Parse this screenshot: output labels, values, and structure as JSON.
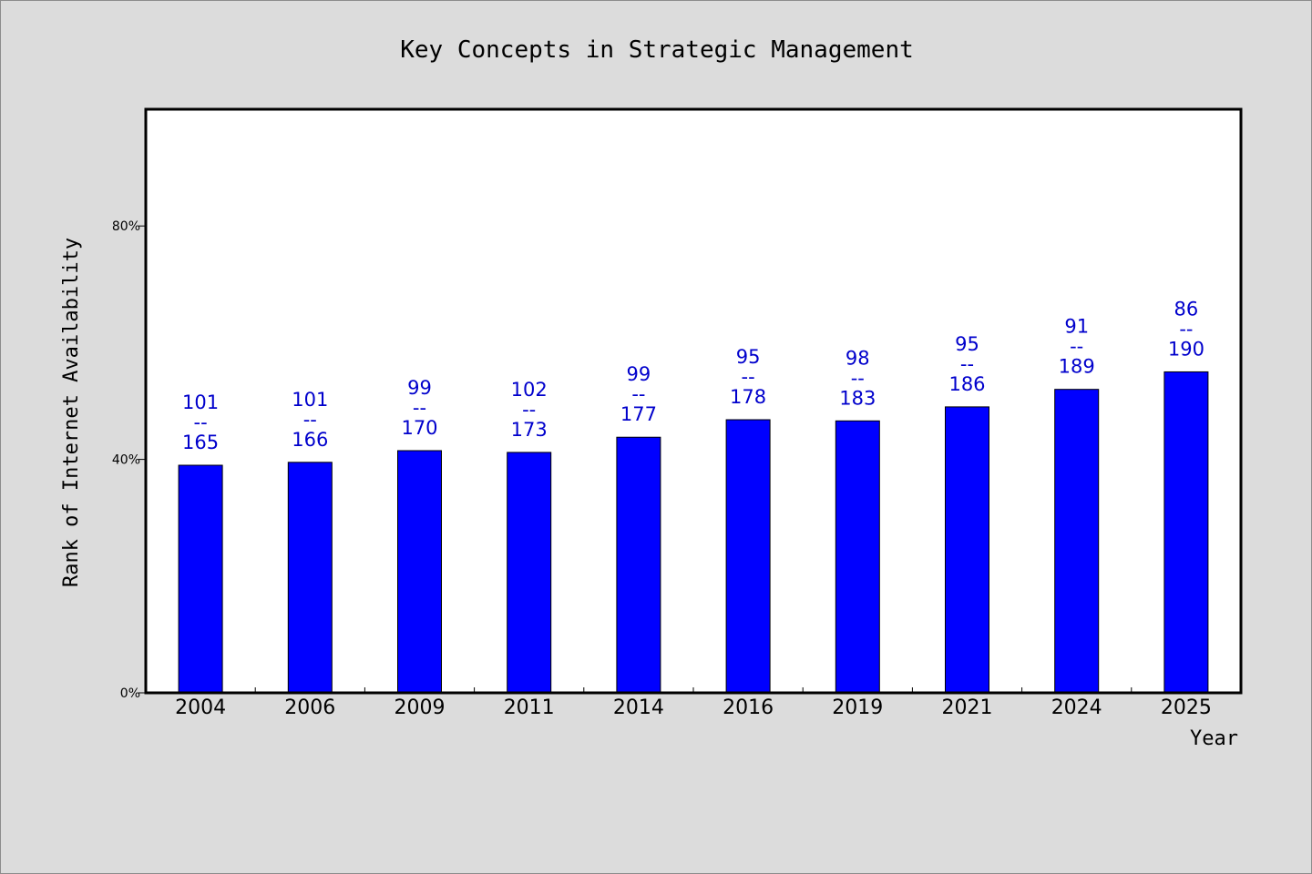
{
  "chart_data": {
    "type": "bar",
    "title": "Key Concepts in Strategic Management",
    "xlabel": "Year",
    "ylabel": "Rank of Internet Availability",
    "categories": [
      "2004",
      "2006",
      "2009",
      "2011",
      "2014",
      "2016",
      "2019",
      "2021",
      "2024",
      "2025"
    ],
    "values": [
      0.39,
      0.395,
      0.415,
      0.412,
      0.438,
      0.468,
      0.466,
      0.49,
      0.52,
      0.55
    ],
    "data_labels": [
      [
        "101",
        "--",
        "165"
      ],
      [
        "101",
        "--",
        "166"
      ],
      [
        "99",
        "--",
        "170"
      ],
      [
        "102",
        "--",
        "173"
      ],
      [
        "99",
        "--",
        "177"
      ],
      [
        "95",
        "--",
        "178"
      ],
      [
        "98",
        "--",
        "183"
      ],
      [
        "95",
        "--",
        "186"
      ],
      [
        "91",
        "--",
        "189"
      ],
      [
        "86",
        "--",
        "190"
      ]
    ],
    "ylim": [
      0,
      1.0
    ],
    "yticks": [
      0,
      0.4,
      0.8
    ],
    "ytick_labels": [
      "0%",
      "40%",
      "80%"
    ],
    "colors": {
      "bar": "#0000ff",
      "label": "#0000cc",
      "background": "#dcdcdc",
      "plot_background": "#ffffff"
    },
    "grid": false,
    "legend": "none"
  }
}
